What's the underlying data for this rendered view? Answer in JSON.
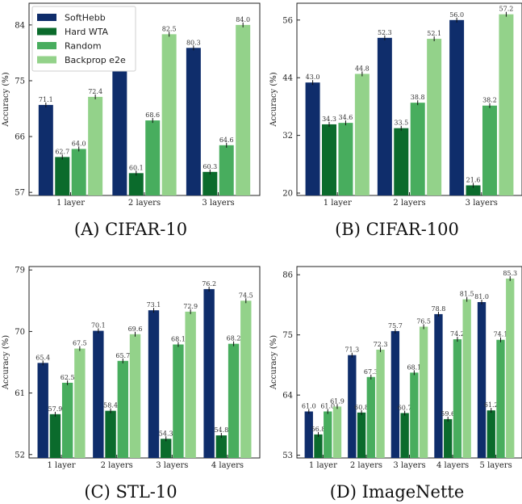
{
  "colors": {
    "SoftHebb": "#0f2d6b",
    "Hard WTA": "#0b6b2c",
    "Random": "#48ad5e",
    "Backprop e2e": "#93d28a"
  },
  "captions": [
    "(A) CIFAR-10",
    "(B) CIFAR-100",
    "(C) STL-10",
    "(D) ImageNette"
  ],
  "chart_data": [
    {
      "type": "bar",
      "categories": [
        "1 layer",
        "2 layers",
        "3 layers"
      ],
      "series": [
        {
          "name": "SoftHebb",
          "values": [
            71.1,
            77.7,
            80.3
          ]
        },
        {
          "name": "Hard WTA",
          "values": [
            62.7,
            60.1,
            60.3
          ]
        },
        {
          "name": "Random",
          "values": [
            64.0,
            68.6,
            64.6
          ]
        },
        {
          "name": "Backprop e2e",
          "values": [
            72.4,
            82.5,
            84.0
          ]
        }
      ],
      "labels": [
        [
          "71.1",
          "77.7",
          "80.3"
        ],
        [
          "62.7",
          "60.1",
          "60.3"
        ],
        [
          "64.0",
          "68.6",
          "64.6"
        ],
        [
          "72.4",
          "82.5",
          "84.0"
        ]
      ],
      "ylabel": "Accuracy (%)",
      "yticks": [
        57,
        66,
        75,
        84
      ],
      "ylim": [
        56.5,
        87.5
      ],
      "legend": "top-left"
    },
    {
      "type": "bar",
      "categories": [
        "1 layer",
        "2 layers",
        "3 layers"
      ],
      "series": [
        {
          "name": "SoftHebb",
          "values": [
            43.0,
            52.3,
            56.0
          ]
        },
        {
          "name": "Hard WTA",
          "values": [
            34.3,
            33.5,
            21.6
          ]
        },
        {
          "name": "Random",
          "values": [
            34.6,
            38.8,
            38.2
          ]
        },
        {
          "name": "Backprop e2e",
          "values": [
            44.8,
            52.1,
            57.2
          ]
        }
      ],
      "labels": [
        [
          "43.0",
          "52.3",
          "56.0"
        ],
        [
          "34.3",
          "33.5",
          "21.6"
        ],
        [
          "34.6",
          "38.8",
          "38.2"
        ],
        [
          "44.8",
          "52.1",
          "57.2"
        ]
      ],
      "ylabel": "Accuracy (%)",
      "yticks": [
        20,
        32,
        44,
        56
      ],
      "ylim": [
        19.5,
        59.5
      ]
    },
    {
      "type": "bar",
      "categories": [
        "1 layer",
        "2 layers",
        "3 layers",
        "4 layers"
      ],
      "series": [
        {
          "name": "SoftHebb",
          "values": [
            65.4,
            70.1,
            73.1,
            76.2
          ]
        },
        {
          "name": "Hard WTA",
          "values": [
            57.9,
            58.4,
            54.3,
            54.8
          ]
        },
        {
          "name": "Random",
          "values": [
            62.5,
            65.7,
            68.1,
            68.2
          ]
        },
        {
          "name": "Backprop e2e",
          "values": [
            67.5,
            69.6,
            72.9,
            74.5
          ]
        }
      ],
      "labels": [
        [
          "65.4",
          "70.1",
          "73.1",
          "76.2"
        ],
        [
          "57.9",
          "58.4",
          "54.3",
          "54.8"
        ],
        [
          "62.5",
          "65.7",
          "68.1",
          "68.2"
        ],
        [
          "67.5",
          "69.6",
          "72.9",
          "74.5"
        ]
      ],
      "ylabel": "Accuracy (%)",
      "yticks": [
        52,
        61,
        70,
        79
      ],
      "ylim": [
        51.5,
        79.5
      ]
    },
    {
      "type": "bar",
      "categories": [
        "1 layer",
        "2 layers",
        "3 layers",
        "4 layers",
        "5 layers"
      ],
      "series": [
        {
          "name": "SoftHebb",
          "values": [
            61.0,
            71.3,
            75.7,
            78.8,
            81.0
          ]
        },
        {
          "name": "Hard WTA",
          "values": [
            56.8,
            60.8,
            60.7,
            59.6,
            61.2
          ]
        },
        {
          "name": "Random",
          "values": [
            61.0,
            67.3,
            68.1,
            74.2,
            74.1
          ]
        },
        {
          "name": "Backprop e2e",
          "values": [
            61.9,
            72.3,
            76.5,
            81.5,
            85.3
          ]
        }
      ],
      "labels": [
        [
          "61.0",
          "71.3",
          "75.7",
          "78.8",
          "81.0"
        ],
        [
          "56.8",
          "60.8",
          "60.7",
          "59.6",
          "61.2"
        ],
        [
          "61.0",
          "67.3",
          "68.1",
          "74.2",
          "74.1"
        ],
        [
          "61.9",
          "72.3",
          "76.5",
          "81.5",
          "85.3"
        ]
      ],
      "ylabel": "Accuracy (%)",
      "yticks": [
        53,
        64,
        75,
        86
      ],
      "ylim": [
        52.5,
        87.5
      ]
    }
  ]
}
